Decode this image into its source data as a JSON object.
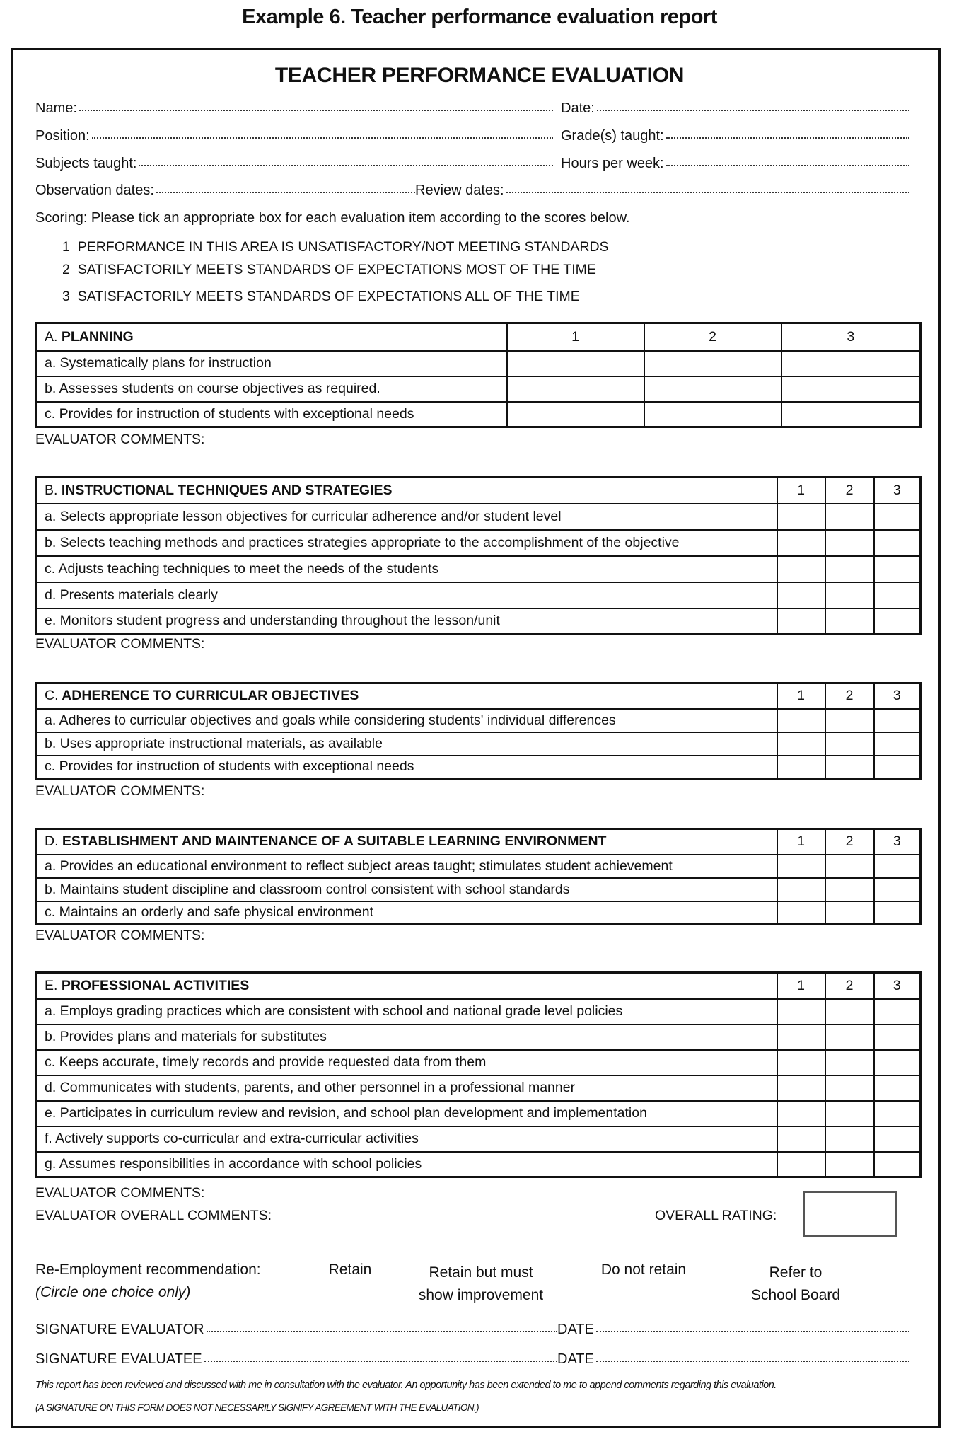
{
  "doc_title": "Example 6. Teacher performance evaluation report",
  "form_title": "TEACHER PERFORMANCE EVALUATION",
  "fields": {
    "name": "Name:",
    "date": "Date:",
    "position": "Position:",
    "grades": "Grade(s) taught:",
    "subjects": "Subjects taught:",
    "hours": "Hours per week:",
    "observation": "Observation dates:",
    "review": "Review dates:"
  },
  "scoring": {
    "intro": "Scoring:  Please tick an appropriate box for each evaluation item according to the scores below.",
    "levels": [
      {
        "num": "1",
        "text": "PERFORMANCE IN THIS AREA IS UNSATISFACTORY/NOT MEETING STANDARDS"
      },
      {
        "num": "2",
        "text": "SATISFACTORILY MEETS STANDARDS OF EXPECTATIONS MOST OF THE TIME"
      },
      {
        "num": "3",
        "text": "SATISFACTORILY MEETS STANDARDS OF EXPECTATIONS ALL OF THE TIME"
      }
    ]
  },
  "score_headers": [
    "1",
    "2",
    "3"
  ],
  "comments_label": "EVALUATOR COMMENTS:",
  "sections": [
    {
      "letter": "A.",
      "title": "PLANNING",
      "items": [
        "a. Systematically plans for instruction",
        "b. Assesses students on course objectives as required.",
        "c. Provides for instruction of students with exceptional needs"
      ]
    },
    {
      "letter": "B.",
      "title": "INSTRUCTIONAL TECHNIQUES AND STRATEGIES",
      "items": [
        "a. Selects appropriate lesson objectives for curricular adherence and/or student level",
        "b. Selects teaching methods and practices strategies appropriate to the accomplishment of the objective",
        "c. Adjusts teaching techniques to meet the needs of the students",
        "d. Presents materials clearly",
        "e. Monitors student progress and understanding throughout the lesson/unit"
      ]
    },
    {
      "letter": "C.",
      "title": "ADHERENCE TO CURRICULAR OBJECTIVES",
      "items": [
        "a. Adheres to curricular objectives and goals while considering students' individual differences",
        "b. Uses appropriate instructional materials, as available",
        "c. Provides for instruction of students with exceptional needs"
      ]
    },
    {
      "letter": "D.",
      "title": "ESTABLISHMENT AND MAINTENANCE OF A SUITABLE LEARNING ENVIRONMENT",
      "items": [
        "a. Provides an educational environment to reflect subject areas taught; stimulates student achievement",
        "b. Maintains student discipline and classroom control consistent with school standards",
        "c. Maintains an orderly and safe physical environment"
      ]
    },
    {
      "letter": "E.",
      "title": "PROFESSIONAL ACTIVITIES",
      "items": [
        "a. Employs grading practices which are consistent with school and national grade level policies",
        "b. Provides plans and materials for substitutes",
        "c. Keeps accurate, timely records and provide requested data from them",
        "d. Communicates with students, parents, and other personnel in a professional manner",
        "e. Participates in curriculum review and revision, and school plan development and implementation",
        "f. Actively supports co-curricular and extra-curricular activities",
        "g. Assumes responsibilities in accordance with school policies"
      ]
    }
  ],
  "overall": {
    "comments": "EVALUATOR OVERALL COMMENTS:",
    "rating": "OVERALL RATING:"
  },
  "reemployment": {
    "label": "Re-Employment recommendation:",
    "note": "(Circle one choice only)",
    "options": [
      {
        "line1": "Retain",
        "line2": ""
      },
      {
        "line1": "Retain but must",
        "line2": "show improvement"
      },
      {
        "line1": "Do not retain",
        "line2": ""
      },
      {
        "line1": "Refer to",
        "line2": "School Board"
      }
    ]
  },
  "signatures": {
    "evaluator": "SIGNATURE EVALUATOR",
    "evaluatee": "SIGNATURE EVALUATEE",
    "date": "DATE"
  },
  "footnote": "This report has been reviewed and discussed with me in consultation with the evaluator. An opportunity has been extended to me to append comments regarding this evaluation.",
  "disclaimer": "(A SIGNATURE ON THIS FORM DOES NOT NECESSARILY SIGNIFY AGREEMENT WITH THE EVALUATION.)"
}
